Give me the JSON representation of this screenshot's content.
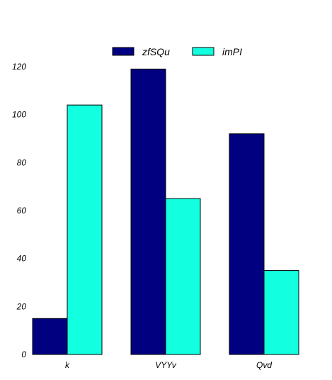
{
  "chart_data": {
    "type": "bar",
    "categories": [
      "k",
      "VYYv",
      "Qvd"
    ],
    "series": [
      {
        "name": "zfSQu",
        "color": "#000080",
        "values": [
          15,
          119,
          92
        ]
      },
      {
        "name": "imPI",
        "color": "#12ffe0",
        "values": [
          104,
          65,
          35
        ]
      }
    ],
    "ylim": [
      0,
      120
    ],
    "yticks": [
      0,
      20,
      40,
      60,
      80,
      100,
      120
    ],
    "grid": false,
    "legend_position": "top-center",
    "title": "",
    "xlabel": "",
    "ylabel": ""
  }
}
